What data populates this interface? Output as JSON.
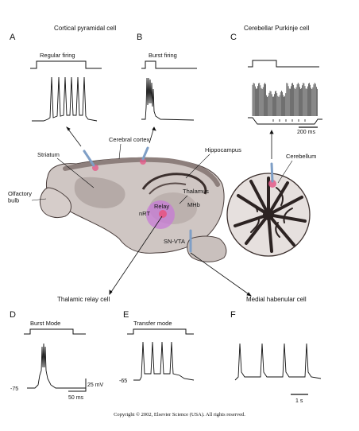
{
  "colors": {
    "ink": "#111111",
    "tissue": "#ccc4c2",
    "tissue_dark": "#6b5e5c",
    "electrode": "#7f9fc6",
    "hotspot": "#e35a8a",
    "relay_glow": "#c77bd6"
  },
  "titles": {
    "cortical": "Cortical pyramidal cell",
    "purkinje": "Cerebellar Purkinje cell",
    "thalamic": "Thalamic relay cell",
    "habenular": "Medial habenular cell"
  },
  "panels": {
    "A": {
      "letter": "A",
      "label": "Regular firing"
    },
    "B": {
      "letter": "B",
      "label": "Burst firing"
    },
    "C": {
      "letter": "C",
      "scalebar": "200 ms"
    },
    "D": {
      "letter": "D",
      "label": "Burst Mode",
      "voltage": "-75",
      "vscale": "25 mV",
      "tscale": "50 ms"
    },
    "E": {
      "letter": "E",
      "label": "Transfer mode",
      "voltage": "-65"
    },
    "F": {
      "letter": "F",
      "tscale": "1 s"
    }
  },
  "regions": {
    "striatum": "Striatum",
    "cortex": "Cerebral cortex",
    "hippocampus": "Hippocampus",
    "cerebellum": "Cerebellum",
    "olfactory": "Olfactory\nbulb",
    "thalamus": "Thalamus",
    "mhb": "MHb",
    "nrt": "nRT",
    "relay": "Relay",
    "snvta": "SN-VTA"
  },
  "copyright": "Copyright © 2002, Elsevier Science (USA). All rights reserved."
}
